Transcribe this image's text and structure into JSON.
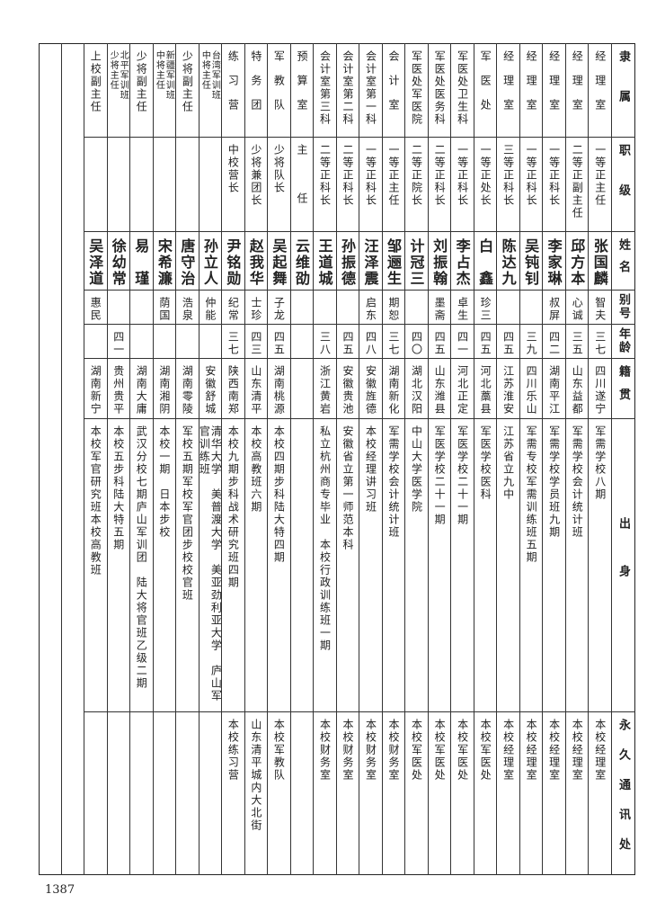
{
  "header": [
    "隶属",
    "职级",
    "姓名",
    "别号",
    "年龄",
    "籍贯",
    "出身",
    "永久通讯处"
  ],
  "rows": [
    [
      "经理室",
      "一等正主任",
      "张国麟",
      "智夫",
      "三七",
      "四川遂宁",
      "军需学校八期",
      "本校经理室"
    ],
    [
      "经理室",
      "二等正副主任",
      "邱方本",
      "心诚",
      "三五",
      "山东益都",
      "军需学校会计统计班",
      "本校经理室"
    ],
    [
      "经理室",
      "一等正科长",
      "李家琳",
      "叔屏",
      "四二",
      "湖南平江",
      "军需学校学员班九期",
      "本校经理室"
    ],
    [
      "经理室",
      "一等正科长",
      "吴钝钊",
      "",
      "三九",
      "四川乐山",
      "军需专校军需训练班五期",
      "本校经理室"
    ],
    [
      "经理室",
      "三等正科长",
      "陈达九",
      "",
      "四五",
      "江苏淮安",
      "江苏省立九中",
      "本校经理室"
    ],
    [
      "军医处",
      "一等正处长",
      "白　鑫",
      "珍三",
      "四五",
      "河北藁县",
      "军医学校医科",
      "本校军医处"
    ],
    [
      "军医处卫生科",
      "一等正科长",
      "李占杰",
      "卓生",
      "四一",
      "河北正定",
      "军医学校二十一期",
      "本校军医处"
    ],
    [
      "军医处医务科",
      "二等正科长",
      "刘振翰",
      "墨斋",
      "四五",
      "山东潍县",
      "军医学校二十一期",
      "本校军医处"
    ],
    [
      "军医处军医院",
      "二等正院长",
      "计冠三",
      "",
      "四〇",
      "湖北汉阳",
      "中山大学医学院",
      "本校军医处"
    ],
    [
      "会计室",
      "一等正主任",
      "邹逦生",
      "期恕",
      "三七",
      "湖南新化",
      "军需学校会计统计班",
      "本校财务室"
    ],
    [
      "会计室第一科",
      "一等正科长",
      "汪泽震",
      "启东",
      "四八",
      "安徽旌德",
      "本校经理讲习班",
      "本校财务室"
    ],
    [
      "会计室第二科",
      "二等正科长",
      "孙振德",
      "",
      "四五",
      "安徽贵池",
      "安徽省立第一师范本科",
      "本校财务室"
    ],
    [
      "会计室第三科",
      "二等正科长",
      "王道城",
      "",
      "三八",
      "浙江黄岩",
      "私立杭州商专毕业　本校行政训练班一期",
      "本校财务室"
    ],
    [
      "预算室",
      "主　任",
      "云维劭",
      "",
      "",
      "",
      "",
      ""
    ],
    [
      "军教队",
      "少将队长",
      "吴起舞",
      "子龙",
      "四五",
      "湖南桃源",
      "本校四期步科陆大特四期",
      "本校军教队"
    ],
    [
      "特务团",
      "少将兼团长",
      "赵我华",
      "士珍",
      "四三",
      "山东清平",
      "本校高教班六期",
      "山东清平城内大北街"
    ],
    [
      "练习营",
      "中校营长",
      "尹铭勋",
      "纪常",
      "三七",
      "陕西南郑",
      "本校九期步科战术研究班四期",
      "本校练习营"
    ],
    [
      "台湾军训班\n中将主任",
      "",
      "孙立人",
      "仲能",
      "",
      "安徽舒城",
      "清华大学　美普渡大学　美亚劲利亚大学　庐山军官训练班",
      ""
    ],
    [
      "少将副主任",
      "",
      "唐守治",
      "浩泉",
      "",
      "湖南零陵",
      "军校五期军校军官团步校校官班",
      ""
    ],
    [
      "新疆军训班\n中将主任",
      "",
      "宋希濂",
      "荫国",
      "",
      "湖南湘阴",
      "本校一期　日本步校",
      ""
    ],
    [
      "少将副主任",
      "",
      "易　瑾",
      "",
      "",
      "湖南大庸",
      "武汉分校七期庐山军训团　陆大将官班乙级二期",
      ""
    ],
    [
      "北平军训班\n少将主任",
      "",
      "徐幼常",
      "",
      "四一",
      "贵州贵平",
      "本校五步科陆大特五期",
      ""
    ],
    [
      "上校副主任",
      "",
      "吴泽道",
      "惠民",
      "",
      "湖南新宁",
      "本校军官研究班本校高教班",
      ""
    ]
  ],
  "page_number": "1387"
}
